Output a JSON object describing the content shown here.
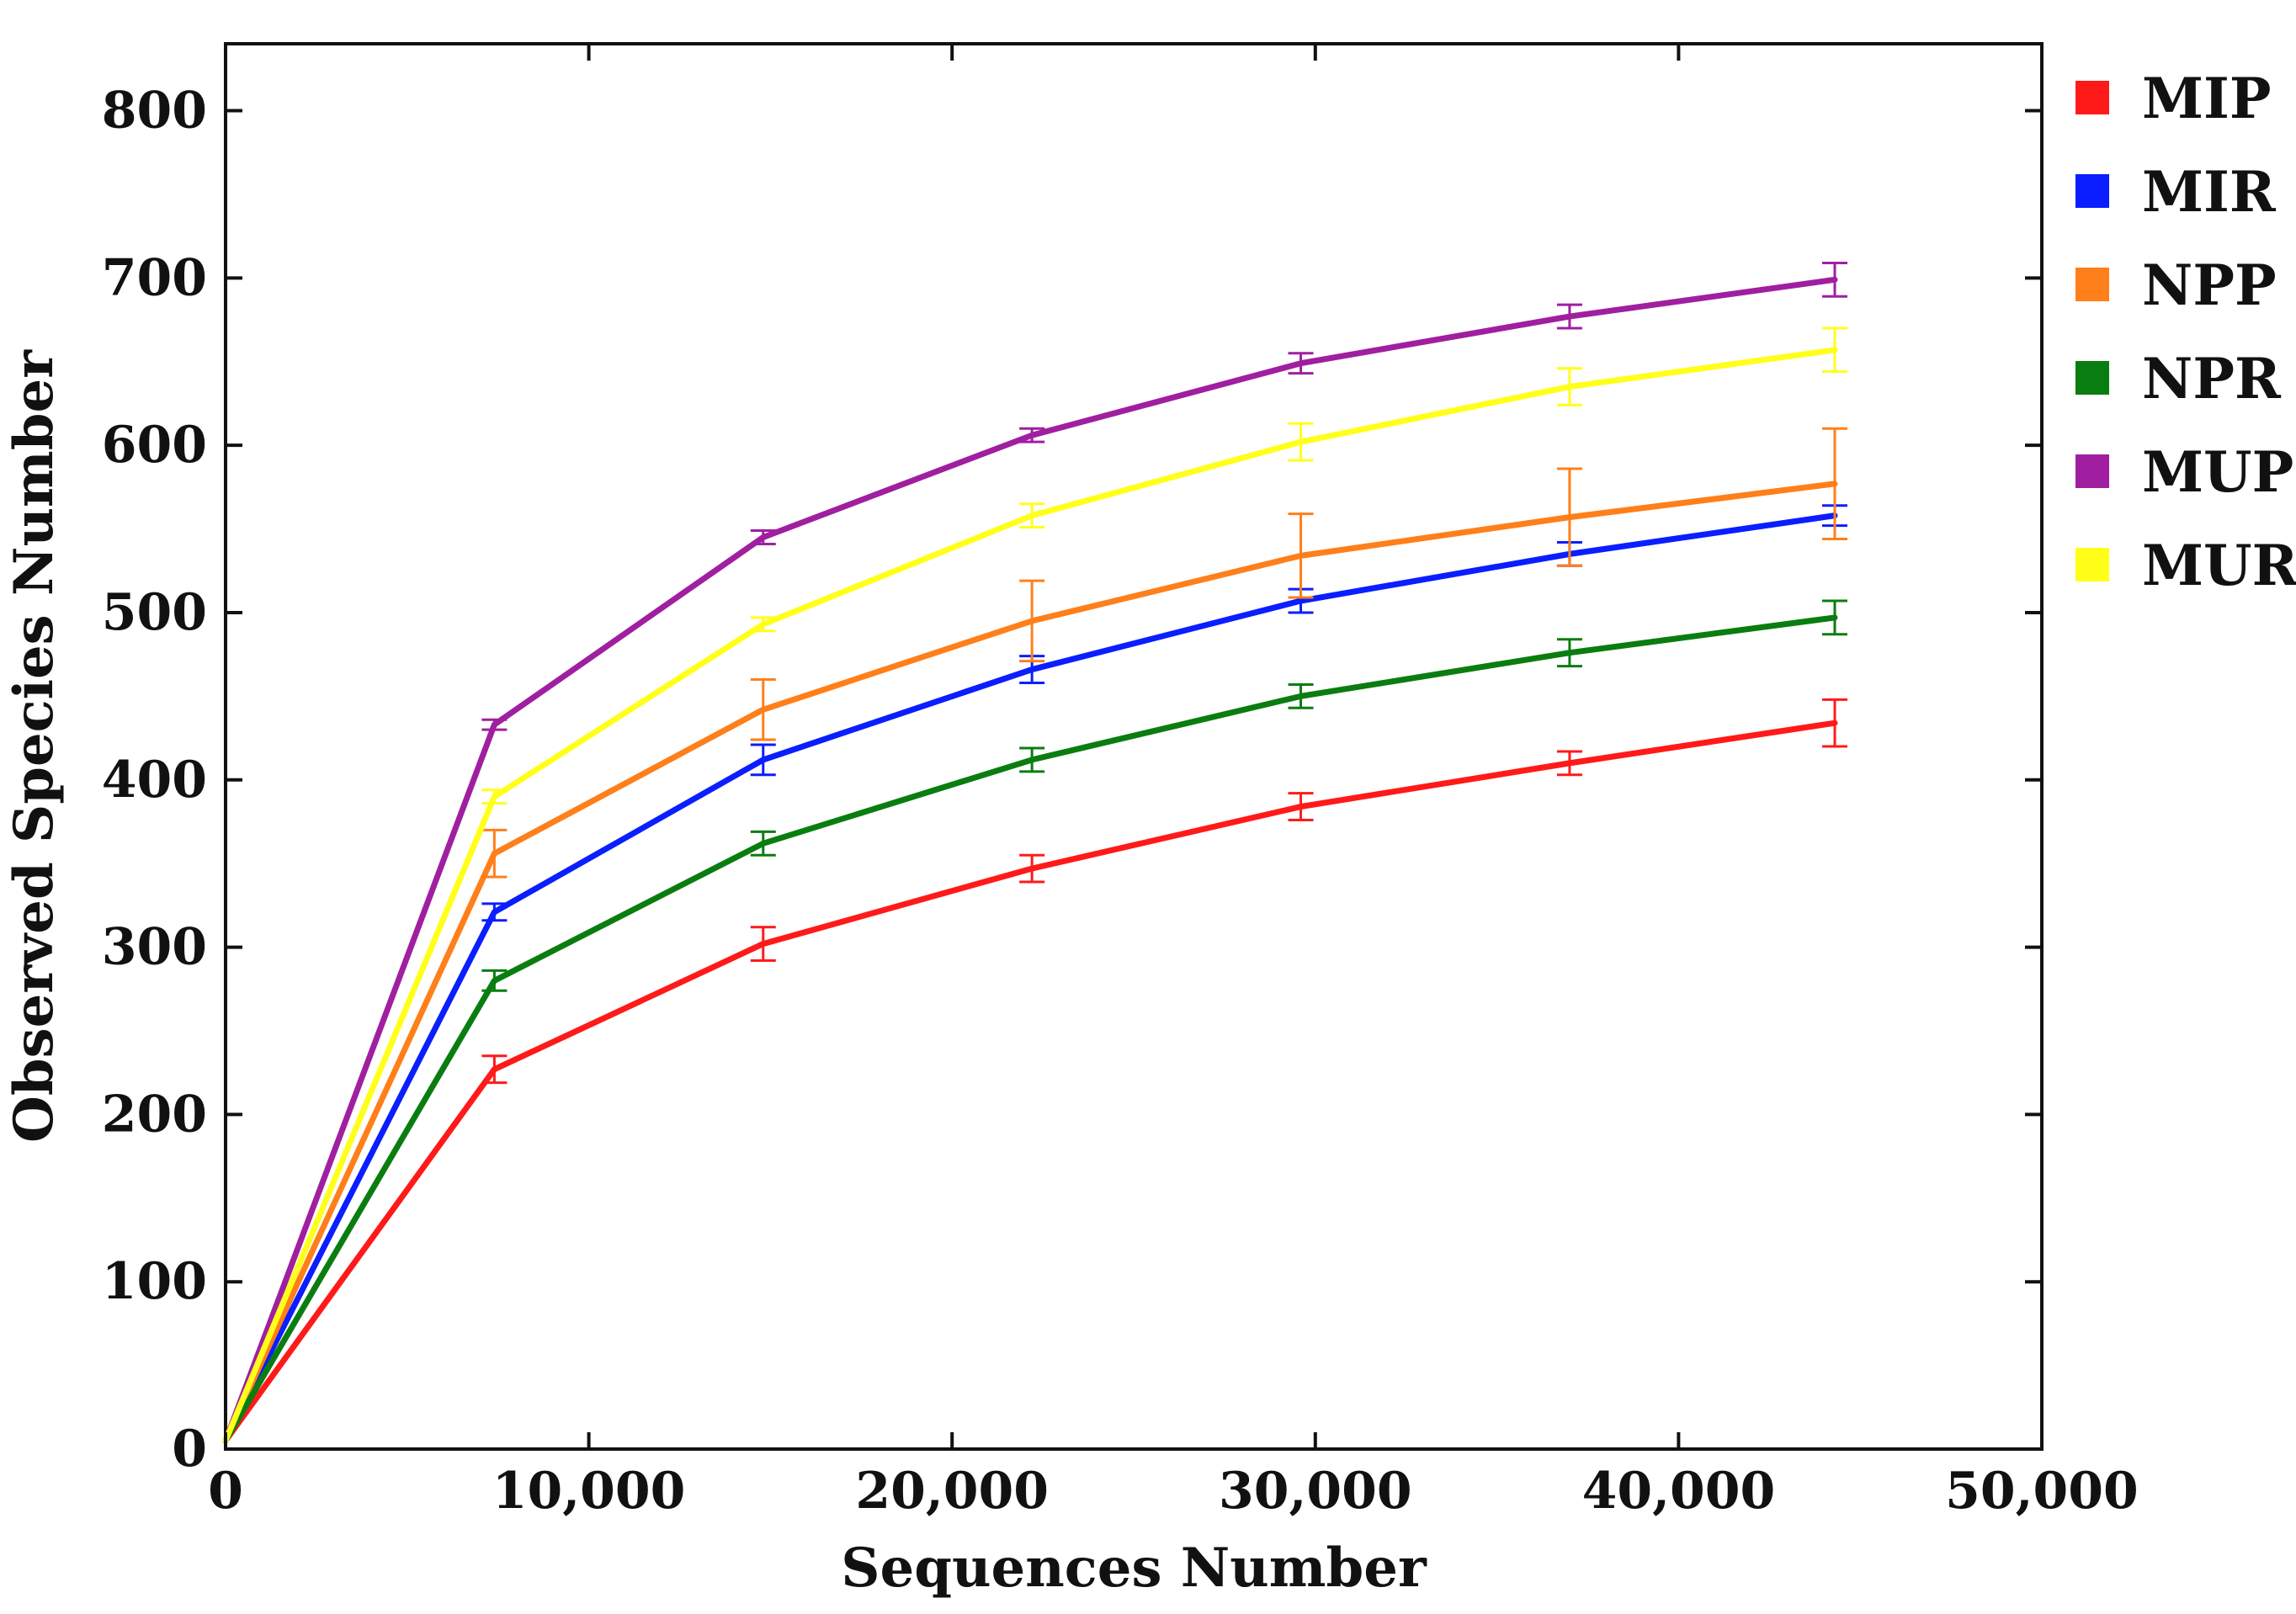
{
  "chart_data": {
    "type": "line",
    "title": "",
    "xlabel": "Sequences Number",
    "ylabel": "Observed Species Number",
    "xlim": [
      0,
      50000
    ],
    "ylim": [
      0,
      840
    ],
    "x_ticks": [
      0,
      10000,
      20000,
      30000,
      40000,
      50000
    ],
    "x_tick_labels": [
      "0",
      "10,000",
      "20,000",
      "30,000",
      "40,000",
      "50,000"
    ],
    "y_ticks": [
      0,
      100,
      200,
      300,
      400,
      500,
      600,
      700,
      800
    ],
    "y_tick_labels": [
      "0",
      "100",
      "200",
      "300",
      "400",
      "500",
      "600",
      "700",
      "800"
    ],
    "grid": false,
    "legend_position": "right",
    "x": [
      0,
      7400,
      14800,
      22200,
      29600,
      37000,
      44300
    ],
    "series": [
      {
        "name": "MIP",
        "color": "#ff1a1a",
        "values": [
          5,
          227,
          302,
          347,
          384,
          410,
          434
        ],
        "errors": [
          0,
          8,
          10,
          8,
          8,
          7,
          14
        ]
      },
      {
        "name": "MIR",
        "color": "#0a1eff",
        "values": [
          5,
          321,
          412,
          466,
          507,
          535,
          558
        ],
        "errors": [
          0,
          5,
          9,
          8,
          7,
          7,
          6
        ]
      },
      {
        "name": "NPP",
        "color": "#ff7f1a",
        "values": [
          5,
          356,
          442,
          495,
          534,
          557,
          577
        ],
        "errors": [
          0,
          14,
          18,
          24,
          25,
          29,
          33
        ]
      },
      {
        "name": "NPR",
        "color": "#0a7d10",
        "values": [
          5,
          280,
          362,
          412,
          450,
          476,
          497
        ],
        "errors": [
          0,
          6,
          7,
          7,
          7,
          8,
          10
        ]
      },
      {
        "name": "MUP",
        "color": "#a01fa0",
        "values": [
          5,
          433,
          545,
          606,
          649,
          677,
          699
        ],
        "errors": [
          0,
          3,
          4,
          4,
          6,
          7,
          10
        ]
      },
      {
        "name": "MUR",
        "color": "#ffff1a",
        "values": [
          5,
          390,
          493,
          558,
          602,
          635,
          657
        ],
        "errors": [
          0,
          4,
          4,
          7,
          11,
          11,
          13
        ]
      }
    ]
  }
}
